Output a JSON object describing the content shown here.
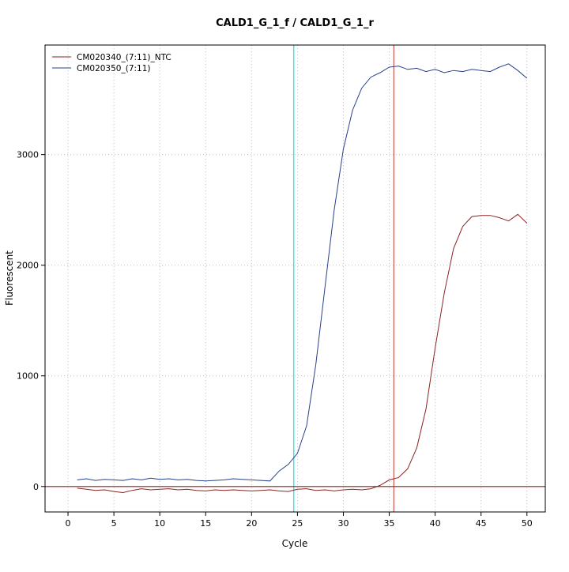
{
  "title": "CALD1_G_1_f / CALD1_G_1_r",
  "chart_data": {
    "type": "line",
    "title": "CALD1_G_1_f / CALD1_G_1_r",
    "xlabel": "Cycle",
    "ylabel": "Fluorescent",
    "xlim": [
      -2.5,
      52
    ],
    "ylim": [
      -230,
      3990
    ],
    "xticks": [
      0,
      5,
      10,
      15,
      20,
      25,
      30,
      35,
      40,
      45,
      50
    ],
    "yticks": [
      0,
      1000,
      2000,
      3000
    ],
    "grid": "dotted",
    "grid_color": "#bdbdbd",
    "legend_position": "top-left",
    "x": [
      1,
      2,
      3,
      4,
      5,
      6,
      7,
      8,
      9,
      10,
      11,
      12,
      13,
      14,
      15,
      16,
      17,
      18,
      19,
      20,
      21,
      22,
      23,
      24,
      25,
      26,
      27,
      28,
      29,
      30,
      31,
      32,
      33,
      34,
      35,
      36,
      37,
      38,
      39,
      40,
      41,
      42,
      43,
      44,
      45,
      46,
      47,
      48,
      49,
      50
    ],
    "series": [
      {
        "name": "CM020340_(7:11)_NTC",
        "color": "#8B2323",
        "values": [
          -15,
          -25,
          -35,
          -30,
          -45,
          -55,
          -35,
          -20,
          -30,
          -25,
          -20,
          -30,
          -25,
          -35,
          -40,
          -30,
          -35,
          -30,
          -35,
          -40,
          -35,
          -30,
          -40,
          -45,
          -25,
          -20,
          -35,
          -30,
          -40,
          -30,
          -25,
          -30,
          -20,
          10,
          60,
          80,
          160,
          350,
          700,
          1250,
          1750,
          2150,
          2350,
          2440,
          2450,
          2450,
          2430,
          2400,
          2460,
          2380
        ]
      },
      {
        "name": "CM020350_(7:11)",
        "color": "#27408B",
        "values": [
          60,
          70,
          55,
          65,
          60,
          55,
          70,
          60,
          75,
          65,
          70,
          60,
          65,
          55,
          50,
          55,
          60,
          70,
          65,
          60,
          55,
          50,
          140,
          200,
          300,
          550,
          1100,
          1800,
          2500,
          3050,
          3400,
          3600,
          3700,
          3740,
          3790,
          3800,
          3770,
          3780,
          3750,
          3770,
          3740,
          3760,
          3750,
          3770,
          3760,
          3750,
          3790,
          3820,
          3760,
          3690
        ]
      }
    ],
    "reference_lines": [
      {
        "type": "vertical",
        "x": 24.6,
        "color": "#00E5EE",
        "label": "cyan-threshold-cycle"
      },
      {
        "type": "vertical",
        "x": 35.5,
        "color": "#CD5B51",
        "label": "red-threshold-cycle"
      },
      {
        "type": "horizontal",
        "y": 0,
        "color": "#8B2323",
        "label": "baseline-zero"
      }
    ]
  }
}
